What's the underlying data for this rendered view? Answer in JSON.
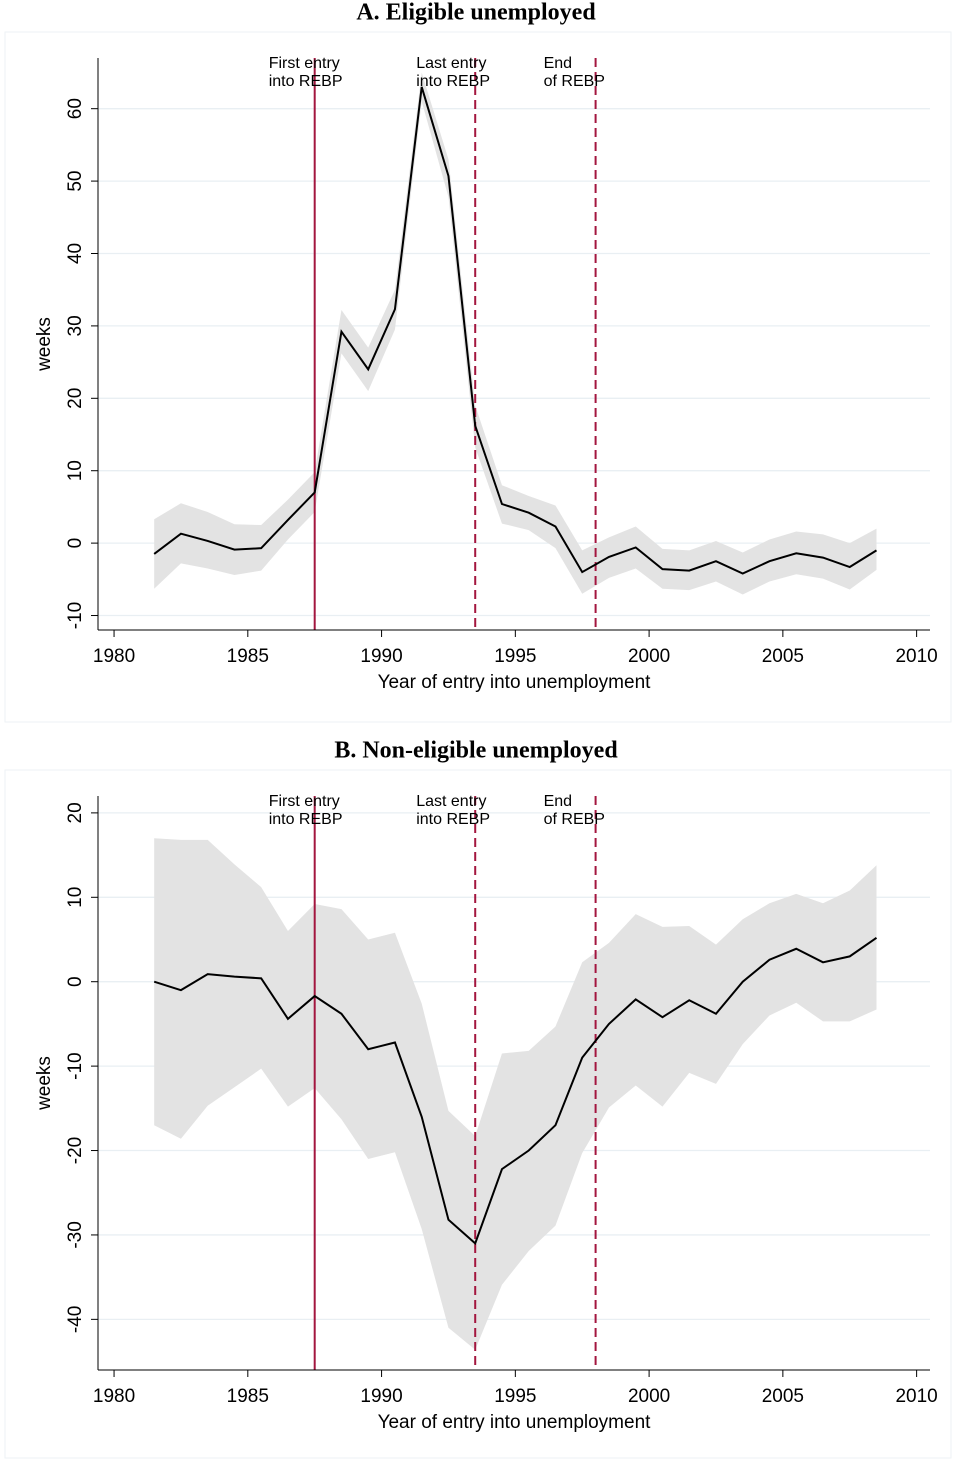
{
  "chart_data": [
    {
      "type": "line",
      "title": "A. Eligible unemployed",
      "x_label": "Year of entry into unemployment",
      "y_label": "weeks",
      "x": [
        1981.5,
        1982.5,
        1983.5,
        1984.5,
        1985.5,
        1986.5,
        1987.5,
        1988.5,
        1989.5,
        1990.5,
        1991.5,
        1992.5,
        1993.5,
        1994.5,
        1995.5,
        1996.5,
        1997.5,
        1998.5,
        1999.5,
        2000.5,
        2001.5,
        2002.5,
        2003.5,
        2004.5,
        2005.5,
        2006.5,
        2007.5,
        2008.5
      ],
      "series": [
        {
          "color": "#000000",
          "values": [
            -1.5,
            1.3,
            0.3,
            -0.9,
            -0.7,
            3.2,
            7,
            29.2,
            24,
            32.3,
            63,
            50.7,
            16.2,
            5.4,
            4.2,
            2.3,
            -4,
            -1.9,
            -0.6,
            -3.6,
            -3.8,
            -2.5,
            -4.2,
            -2.5,
            -1.4,
            -2,
            -3.3,
            -1
          ]
        }
      ],
      "band": {
        "color": "#e3e3e3",
        "upper": [
          3.3,
          5.5,
          4.3,
          2.6,
          2.5,
          6,
          9.8,
          32.2,
          27,
          35,
          65,
          53,
          19,
          8,
          6.5,
          5.2,
          -1,
          0.8,
          2.3,
          -0.8,
          -1,
          0.3,
          -1.3,
          0.5,
          1.6,
          1.2,
          0,
          2
        ],
        "lower": [
          -6.3,
          -2.8,
          -3.5,
          -4.4,
          -3.8,
          0.5,
          4.3,
          26.2,
          21,
          29.5,
          61,
          47.8,
          13.2,
          2.7,
          1.8,
          -0.7,
          -7,
          -4.8,
          -3.5,
          -6.3,
          -6.5,
          -5.3,
          -7.1,
          -5.3,
          -4.3,
          -4.9,
          -6.4,
          -3.7
        ]
      },
      "ref_color": "#a3163f",
      "annotations": [
        {
          "x": 1987.5,
          "style": "solid",
          "lines": [
            "First entry",
            "into REBP"
          ]
        },
        {
          "x": 1993.5,
          "style": "dashed",
          "lines": [
            "Last entry",
            "into REBP"
          ]
        },
        {
          "x": 1998,
          "style": "dashed",
          "lines": [
            "End",
            "of REBP"
          ]
        }
      ],
      "xlim": [
        1979.4,
        2010.5
      ],
      "xticks": [
        1980,
        1985,
        1990,
        1995,
        2000,
        2005,
        2010
      ],
      "ylim": [
        -12,
        67
      ],
      "yticks": [
        -10,
        0,
        10,
        20,
        30,
        40,
        50,
        60
      ],
      "grid": true
    },
    {
      "type": "line",
      "title": "B. Non-eligible unemployed",
      "x_label": "Year of entry into unemployment",
      "y_label": "weeks",
      "x": [
        1981.5,
        1982.5,
        1983.5,
        1984.5,
        1985.5,
        1986.5,
        1987.5,
        1988.5,
        1989.5,
        1990.5,
        1991.5,
        1992.5,
        1993.5,
        1994.5,
        1995.5,
        1996.5,
        1997.5,
        1998.5,
        1999.5,
        2000.5,
        2001.5,
        2002.5,
        2003.5,
        2004.5,
        2005.5,
        2006.5,
        2007.5,
        2008.5
      ],
      "series": [
        {
          "color": "#000000",
          "values": [
            0,
            -1,
            0.9,
            0.6,
            0.4,
            -4.4,
            -1.7,
            -3.8,
            -8,
            -7.2,
            -16,
            -28.2,
            -31,
            -22.2,
            -20,
            -17,
            -9,
            -5,
            -2.1,
            -4.2,
            -2.2,
            -3.8,
            0,
            2.6,
            3.9,
            2.3,
            3,
            5.2
          ]
        }
      ],
      "band": {
        "color": "#e3e3e3",
        "upper": [
          17,
          16.8,
          16.8,
          13.9,
          11.2,
          6,
          9.2,
          8.6,
          5,
          5.8,
          -2.6,
          -15.3,
          -18.3,
          -8.5,
          -8.2,
          -5.3,
          2.3,
          4.6,
          8,
          6.5,
          6.6,
          4.4,
          7.4,
          9.3,
          10.4,
          9.3,
          10.8,
          13.8
        ],
        "lower": [
          -17,
          -18.6,
          -14.7,
          -12.5,
          -10.3,
          -14.8,
          -12.6,
          -16.3,
          -21,
          -20.2,
          -29.3,
          -41,
          -43.6,
          -35.9,
          -31.9,
          -28.9,
          -20.3,
          -14.9,
          -12.3,
          -14.8,
          -10.8,
          -12.1,
          -7.4,
          -4,
          -2.5,
          -4.7,
          -4.7,
          -3.3
        ]
      },
      "ref_color": "#a3163f",
      "annotations": [
        {
          "x": 1987.5,
          "style": "solid",
          "lines": [
            "First entry",
            "into REBP"
          ]
        },
        {
          "x": 1993.5,
          "style": "dashed",
          "lines": [
            "Last entry",
            "into REBP"
          ]
        },
        {
          "x": 1998,
          "style": "dashed",
          "lines": [
            "End",
            "of REBP"
          ]
        }
      ],
      "xlim": [
        1979.4,
        2010.5
      ],
      "xticks": [
        1980,
        1985,
        1990,
        1995,
        2000,
        2005,
        2010
      ],
      "ylim": [
        -46,
        22
      ],
      "yticks": [
        -40,
        -30,
        -20,
        -10,
        0,
        10,
        20
      ],
      "grid": true
    }
  ]
}
